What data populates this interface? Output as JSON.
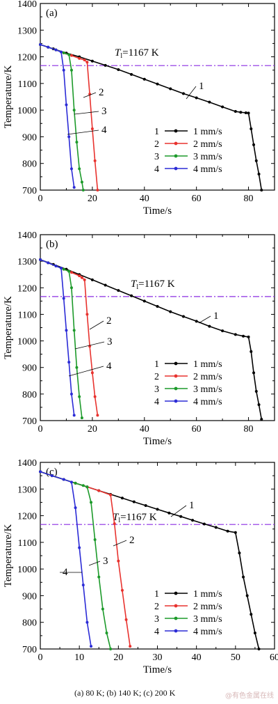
{
  "caption": "(a) 80  K; (b) 140 K; (c) 200 K",
  "watermark": "@有色金属在线",
  "colors": {
    "series1": "#000000",
    "series2": "#e8322e",
    "series3": "#1c9a2a",
    "series4": "#2b2bd6",
    "liquidus": "#8a2be2",
    "axis": "#000000"
  },
  "chart_data": [
    {
      "type": "line",
      "panel_label": "(a)",
      "xlabel": "Time/s",
      "ylabel": "Temperature/K",
      "xlim": [
        0,
        90
      ],
      "ylim": [
        700,
        1400
      ],
      "xticks": [
        0,
        20,
        40,
        60,
        80
      ],
      "yticks": [
        700,
        800,
        900,
        1000,
        1100,
        1200,
        1300,
        1400
      ],
      "reference_line": {
        "y": 1167,
        "style": "dash-dot",
        "label_T": "T",
        "label_sub": "l",
        "label_value": "=1167 K"
      },
      "series": [
        {
          "name": "1 mm/s",
          "legend_index": "1",
          "curve_label": "1",
          "color": "#000000",
          "x": [
            0,
            5,
            10,
            15,
            20,
            25,
            30,
            35,
            40,
            45,
            50,
            55,
            60,
            65,
            70,
            75,
            77,
            79,
            80,
            81,
            82,
            83,
            84,
            85
          ],
          "y": [
            1246,
            1230,
            1214,
            1200,
            1184,
            1168,
            1152,
            1134,
            1116,
            1098,
            1080,
            1062,
            1046,
            1030,
            1012,
            995,
            992,
            990,
            989,
            930,
            870,
            810,
            760,
            700
          ]
        },
        {
          "name": "2 mm/s",
          "legend_index": "2",
          "curve_label": "2",
          "color": "#e8322e",
          "x": [
            0,
            3,
            6,
            9,
            12,
            15,
            17,
            18,
            19,
            20,
            21,
            22
          ],
          "y": [
            1246,
            1236,
            1226,
            1215,
            1205,
            1194,
            1188,
            1180,
            1060,
            930,
            810,
            700
          ]
        },
        {
          "name": "3 mm/s",
          "legend_index": "3",
          "curve_label": "3",
          "color": "#1c9a2a",
          "x": [
            0,
            3,
            6,
            9,
            11,
            12,
            13,
            14,
            15,
            16,
            16.5
          ],
          "y": [
            1246,
            1236,
            1226,
            1215,
            1208,
            1150,
            1000,
            880,
            780,
            730,
            700
          ]
        },
        {
          "name": "4 mm/s",
          "legend_index": "4",
          "curve_label": "4",
          "color": "#2b2bd6",
          "x": [
            0,
            3,
            6,
            8,
            9,
            10,
            11,
            12,
            13
          ],
          "y": [
            1246,
            1236,
            1226,
            1218,
            1150,
            1020,
            900,
            780,
            710
          ]
        }
      ]
    },
    {
      "type": "line",
      "panel_label": "(b)",
      "xlabel": "Time/s",
      "ylabel": "Temperature/K",
      "xlim": [
        0,
        90
      ],
      "ylim": [
        700,
        1400
      ],
      "xticks": [
        0,
        20,
        40,
        60,
        80
      ],
      "yticks": [
        700,
        800,
        900,
        1000,
        1100,
        1200,
        1300,
        1400
      ],
      "reference_line": {
        "y": 1167,
        "style": "dash-dot",
        "label_T": "T",
        "label_sub": "l",
        "label_value": "=1167 K"
      },
      "series": [
        {
          "name": "1 mm/s",
          "legend_index": "1",
          "curve_label": "1",
          "color": "#000000",
          "x": [
            0,
            5,
            10,
            15,
            20,
            25,
            30,
            35,
            40,
            45,
            50,
            55,
            60,
            65,
            70,
            75,
            78,
            80,
            81,
            82,
            83,
            84,
            85
          ],
          "y": [
            1306,
            1288,
            1270,
            1250,
            1230,
            1210,
            1190,
            1170,
            1150,
            1130,
            1110,
            1092,
            1074,
            1055,
            1038,
            1024,
            1018,
            1015,
            960,
            880,
            810,
            760,
            705
          ]
        },
        {
          "name": "2 mm/s",
          "legend_index": "2",
          "curve_label": "2",
          "color": "#e8322e",
          "x": [
            0,
            3,
            6,
            9,
            12,
            15,
            16,
            17,
            18,
            19,
            20,
            21,
            22
          ],
          "y": [
            1306,
            1294,
            1282,
            1270,
            1258,
            1245,
            1238,
            1230,
            1100,
            980,
            880,
            790,
            720
          ]
        },
        {
          "name": "3 mm/s",
          "legend_index": "3",
          "curve_label": "3",
          "color": "#1c9a2a",
          "x": [
            0,
            3,
            6,
            9,
            11,
            12,
            13,
            14,
            15,
            16
          ],
          "y": [
            1306,
            1294,
            1282,
            1270,
            1262,
            1200,
            1040,
            900,
            790,
            710
          ]
        },
        {
          "name": "4 mm/s",
          "legend_index": "4",
          "curve_label": "4",
          "color": "#2b2bd6",
          "x": [
            0,
            3,
            6,
            8,
            9,
            10,
            11,
            12,
            13
          ],
          "y": [
            1306,
            1294,
            1282,
            1274,
            1160,
            1040,
            920,
            800,
            720
          ]
        }
      ]
    },
    {
      "type": "line",
      "panel_label": "(c)",
      "xlabel": "Time/s",
      "ylabel": "Temperature/K",
      "xlim": [
        0,
        60
      ],
      "ylim": [
        700,
        1400
      ],
      "xticks": [
        0,
        10,
        20,
        30,
        40,
        50,
        60
      ],
      "yticks": [
        700,
        800,
        900,
        1000,
        1100,
        1200,
        1300,
        1400
      ],
      "reference_line": {
        "y": 1167,
        "style": "dash-dot",
        "label_T": "T",
        "label_sub": "l",
        "label_value": "=1167 K"
      },
      "series": [
        {
          "name": "1 mm/s",
          "legend_index": "1",
          "curve_label": "1",
          "color": "#000000",
          "x": [
            0,
            3,
            6,
            9,
            12,
            15,
            18,
            21,
            24,
            27,
            30,
            33,
            36,
            39,
            42,
            45,
            48,
            50,
            51,
            52,
            53,
            54,
            55,
            56
          ],
          "y": [
            1365,
            1350,
            1336,
            1322,
            1308,
            1294,
            1280,
            1266,
            1252,
            1238,
            1224,
            1210,
            1197,
            1183,
            1169,
            1156,
            1142,
            1137,
            1060,
            970,
            900,
            830,
            760,
            700
          ]
        },
        {
          "name": "2 mm/s",
          "legend_index": "2",
          "curve_label": "2",
          "color": "#e8322e",
          "x": [
            0,
            3,
            6,
            9,
            12,
            15,
            18,
            19,
            20,
            21,
            22,
            23
          ],
          "y": [
            1365,
            1350,
            1336,
            1322,
            1308,
            1294,
            1278,
            1170,
            1030,
            920,
            810,
            710
          ]
        },
        {
          "name": "3 mm/s",
          "legend_index": "3",
          "curve_label": "3",
          "color": "#1c9a2a",
          "x": [
            0,
            3,
            6,
            9,
            11,
            12,
            13,
            14,
            15,
            16,
            17,
            18
          ],
          "y": [
            1365,
            1350,
            1336,
            1322,
            1313,
            1308,
            1250,
            1110,
            970,
            850,
            760,
            700
          ]
        },
        {
          "name": "4 mm/s",
          "legend_index": "4",
          "curve_label": "4",
          "color": "#2b2bd6",
          "x": [
            0,
            3,
            6,
            8,
            9,
            10,
            11,
            12,
            13
          ],
          "y": [
            1365,
            1350,
            1336,
            1326,
            1230,
            1080,
            940,
            800,
            710
          ]
        }
      ]
    }
  ]
}
